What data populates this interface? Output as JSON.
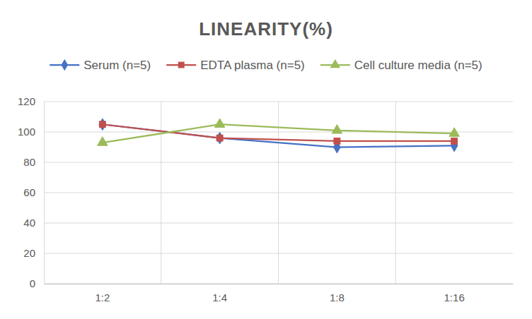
{
  "chart_data": {
    "type": "line",
    "title": "LINEARITY(%)",
    "categories": [
      "1:2",
      "1:4",
      "1:8",
      "1:16"
    ],
    "series": [
      {
        "name": "Serum (n=5)",
        "color": "#4472c4",
        "marker": "diamond",
        "line_style": "solid",
        "values": [
          105,
          96,
          90,
          91
        ]
      },
      {
        "name": "EDTA plasma (n=5)",
        "color": "#c0504d",
        "marker": "square",
        "line_style": "solid",
        "values": [
          105,
          96,
          94,
          94
        ]
      },
      {
        "name": "Cell culture media (n=5)",
        "color": "#9bbb59",
        "marker": "triangle",
        "line_style": "solid",
        "values": [
          93,
          105,
          101,
          99
        ]
      }
    ],
    "ylim": [
      0,
      120
    ],
    "yticks": [
      0,
      20,
      40,
      60,
      80,
      100,
      120
    ],
    "grid": true,
    "legend": "top"
  }
}
